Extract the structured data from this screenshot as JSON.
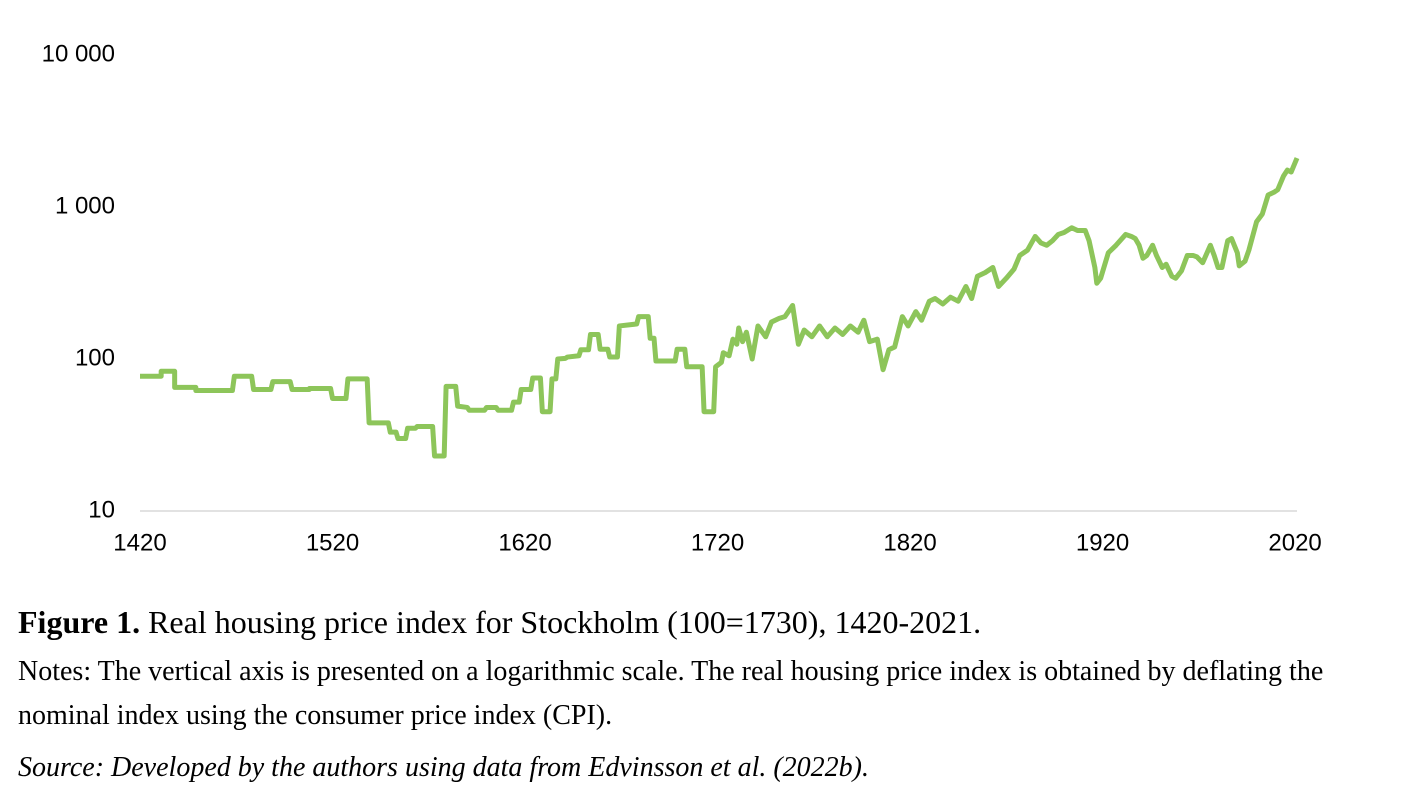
{
  "chart_data": {
    "type": "line",
    "log_scale_y": true,
    "grid": false,
    "xlim": [
      1420,
      2021
    ],
    "xticks": [
      1420,
      1520,
      1620,
      1720,
      1820,
      1920,
      2020
    ],
    "ylim": [
      10,
      10000
    ],
    "yticks": [
      10,
      100,
      {
        "value": 1000,
        "label": "1 000"
      },
      {
        "value": 10000,
        "label": "10 000"
      }
    ],
    "series": [
      {
        "color": "#8dc55a",
        "x": [
          1420,
          1431,
          1431,
          1438,
          1438,
          1449,
          1449,
          1468,
          1469,
          1478,
          1479,
          1488,
          1489,
          1498,
          1499,
          1508,
          1508,
          1519,
          1520,
          1527,
          1528,
          1538,
          1539,
          1549,
          1550,
          1553,
          1554,
          1558,
          1559,
          1563,
          1564,
          1572,
          1573,
          1578,
          1579,
          1584,
          1585,
          1590,
          1591,
          1599,
          1600,
          1605,
          1606,
          1613,
          1614,
          1617,
          1618,
          1623,
          1624,
          1628,
          1629,
          1633,
          1634,
          1636,
          1637,
          1641,
          1642,
          1648,
          1649,
          1653,
          1654,
          1658,
          1659,
          1663,
          1664,
          1668,
          1669,
          1678,
          1679,
          1684,
          1685,
          1687,
          1688,
          1698,
          1699,
          1703,
          1704,
          1712,
          1713,
          1718,
          1719,
          1722,
          1723,
          1726,
          1728,
          1730,
          1731,
          1733,
          1735,
          1738,
          1741,
          1745,
          1748,
          1752,
          1755,
          1759,
          1762,
          1765,
          1769,
          1773,
          1777,
          1781,
          1785,
          1789,
          1793,
          1796,
          1799,
          1803,
          1806,
          1809,
          1812,
          1816,
          1819,
          1823,
          1826,
          1830,
          1833,
          1837,
          1841,
          1845,
          1849,
          1852,
          1855,
          1859,
          1863,
          1866,
          1870,
          1874,
          1877,
          1881,
          1885,
          1888,
          1891,
          1894,
          1897,
          1900,
          1904,
          1907,
          1911,
          1913,
          1916,
          1917,
          1919,
          1923,
          1927,
          1932,
          1935,
          1937,
          1939,
          1941,
          1943,
          1946,
          1948,
          1951,
          1953,
          1956,
          1958,
          1961,
          1964,
          1967,
          1969,
          1972,
          1976,
          1978,
          1980,
          1982,
          1985,
          1987,
          1990,
          1991,
          1994,
          1996,
          2000,
          2003,
          2006,
          2009,
          2011,
          2014,
          2016,
          2018,
          2021
        ],
        "values": [
          77,
          77,
          83,
          83,
          65,
          65,
          62,
          62,
          77,
          77,
          63,
          63,
          71,
          71,
          63,
          63,
          64,
          64,
          55,
          55,
          74,
          74,
          38,
          38,
          33,
          33,
          30,
          30,
          35,
          35,
          36,
          36,
          23,
          23,
          66,
          66,
          49,
          48,
          46,
          46,
          48,
          48,
          46,
          46,
          52,
          52,
          63,
          63,
          75,
          75,
          45,
          45,
          74,
          74,
          100,
          101,
          103,
          105,
          115,
          115,
          145,
          145,
          116,
          116,
          103,
          103,
          165,
          170,
          190,
          190,
          137,
          137,
          97,
          97,
          116,
          116,
          89,
          89,
          45,
          45,
          89,
          95,
          110,
          105,
          135,
          125,
          160,
          130,
          150,
          100,
          165,
          140,
          175,
          185,
          190,
          225,
          125,
          155,
          140,
          165,
          140,
          160,
          145,
          165,
          150,
          180,
          130,
          135,
          85,
          115,
          120,
          190,
          165,
          205,
          180,
          240,
          250,
          230,
          255,
          240,
          300,
          250,
          350,
          370,
          400,
          300,
          340,
          390,
          480,
          520,
          640,
          580,
          560,
          600,
          660,
          680,
          730,
          700,
          700,
          600,
          400,
          315,
          340,
          500,
          560,
          660,
          640,
          620,
          560,
          460,
          480,
          560,
          480,
          400,
          420,
          350,
          340,
          380,
          480,
          480,
          470,
          430,
          560,
          480,
          400,
          400,
          600,
          620,
          500,
          410,
          440,
          520,
          800,
          900,
          1200,
          1250,
          1300,
          1600,
          1750,
          1700,
          2100
        ]
      }
    ]
  },
  "caption": {
    "label": "Figure 1.",
    "text": " Real housing price index for Stockholm (100=1730), 1420-2021.",
    "notes": "Notes: The vertical axis is presented on a logarithmic scale. The real housing price index is obtained by deflating the nominal index using the consumer price index (CPI).",
    "source": "Source: Developed by the authors using data from Edvinsson et al. (2022b)."
  }
}
